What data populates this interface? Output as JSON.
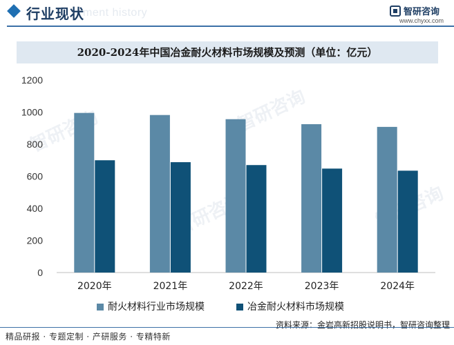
{
  "header": {
    "section_title": "行业现状",
    "ghost_title": "ment history",
    "brand_name": "智研咨询",
    "brand_url": "www.chyxx.com"
  },
  "chart_data": {
    "type": "bar",
    "title": "2020-2024年中国冶金耐火材料市场规模及预测（单位：亿元）",
    "categories": [
      "2020年",
      "2021年",
      "2022年",
      "2023年",
      "2024年"
    ],
    "series": [
      {
        "name": "耐火材料行业市场规模",
        "values": [
          995,
          982,
          956,
          925,
          908
        ],
        "color": "#5b89a6"
      },
      {
        "name": "冶金耐火材料市场规模",
        "values": [
          700,
          688,
          670,
          648,
          635
        ],
        "color": "#0f5177"
      }
    ],
    "y_ticks": [
      "0",
      "200",
      "400",
      "600",
      "800",
      "1000",
      "1200"
    ],
    "ylim": [
      0,
      1200
    ],
    "xlabel": "",
    "ylabel": "",
    "legend_position": "bottom"
  },
  "footer": {
    "left_text": "精品研报 · 专题定制 · 产研服务 · 专精特新",
    "source_text": "资料来源：金岩高新招股说明书，智研咨询整理",
    "watermark_brand": "智研咨询"
  }
}
